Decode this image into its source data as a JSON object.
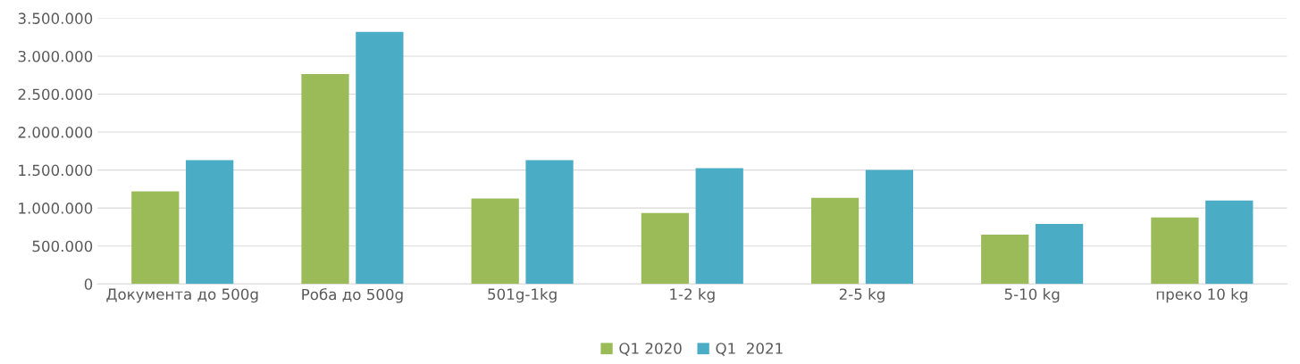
{
  "chart_data": {
    "type": "bar",
    "categories": [
      "Документа до 500g",
      "Роба до 500g",
      "501g-1kg",
      "1-2 kg",
      "2-5 kg",
      "5-10 kg",
      "преко 10 kg"
    ],
    "series": [
      {
        "name": "Q1 2020",
        "color": "#9bbb59",
        "values": [
          1220000,
          2765000,
          1125000,
          935000,
          1135000,
          650000,
          875000
        ]
      },
      {
        "name": "Q1  2021",
        "color": "#4bacc6",
        "values": [
          1630000,
          3320000,
          1630000,
          1525000,
          1500000,
          790000,
          1100000
        ]
      }
    ],
    "ylim": [
      0,
      3500000
    ],
    "yticks": [
      0,
      {
        "value": 500000,
        "label": "500.000"
      },
      {
        "value": 1000000,
        "label": "1.000.000"
      },
      {
        "value": 1500000,
        "label": "1.500.000"
      },
      {
        "value": 2000000,
        "label": "2.000.000"
      },
      {
        "value": 2500000,
        "label": "2.500.000"
      },
      {
        "value": 3000000,
        "label": "3.000.000"
      },
      {
        "value": 3500000,
        "label": "3.500.000"
      }
    ],
    "grid": "y",
    "legend": "bottom"
  }
}
